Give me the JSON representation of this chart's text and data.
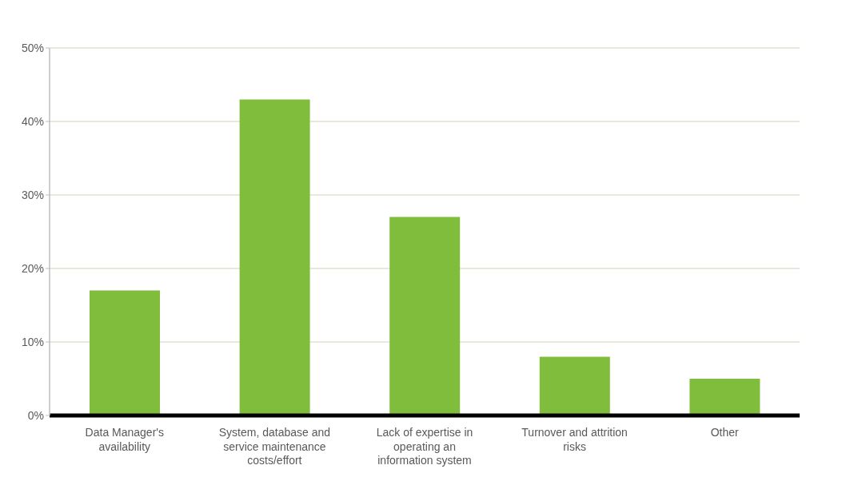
{
  "chart_data": {
    "type": "bar",
    "categories": [
      "Data Manager's availability",
      "System, database and service maintenance costs/effort",
      "Lack of expertise in operating an information system",
      "Turnover and attrition risks",
      "Other"
    ],
    "values": [
      17,
      43,
      27,
      8,
      5
    ],
    "color": "#80bd3d",
    "ylim": [
      0,
      50
    ],
    "yticks": [
      {
        "value": 0,
        "label": "0%"
      },
      {
        "value": 10,
        "label": "10%"
      },
      {
        "value": 20,
        "label": "20%"
      },
      {
        "value": 30,
        "label": "30%"
      },
      {
        "value": 40,
        "label": "40%"
      },
      {
        "value": 50,
        "label": "50%"
      }
    ],
    "grid": "y"
  }
}
